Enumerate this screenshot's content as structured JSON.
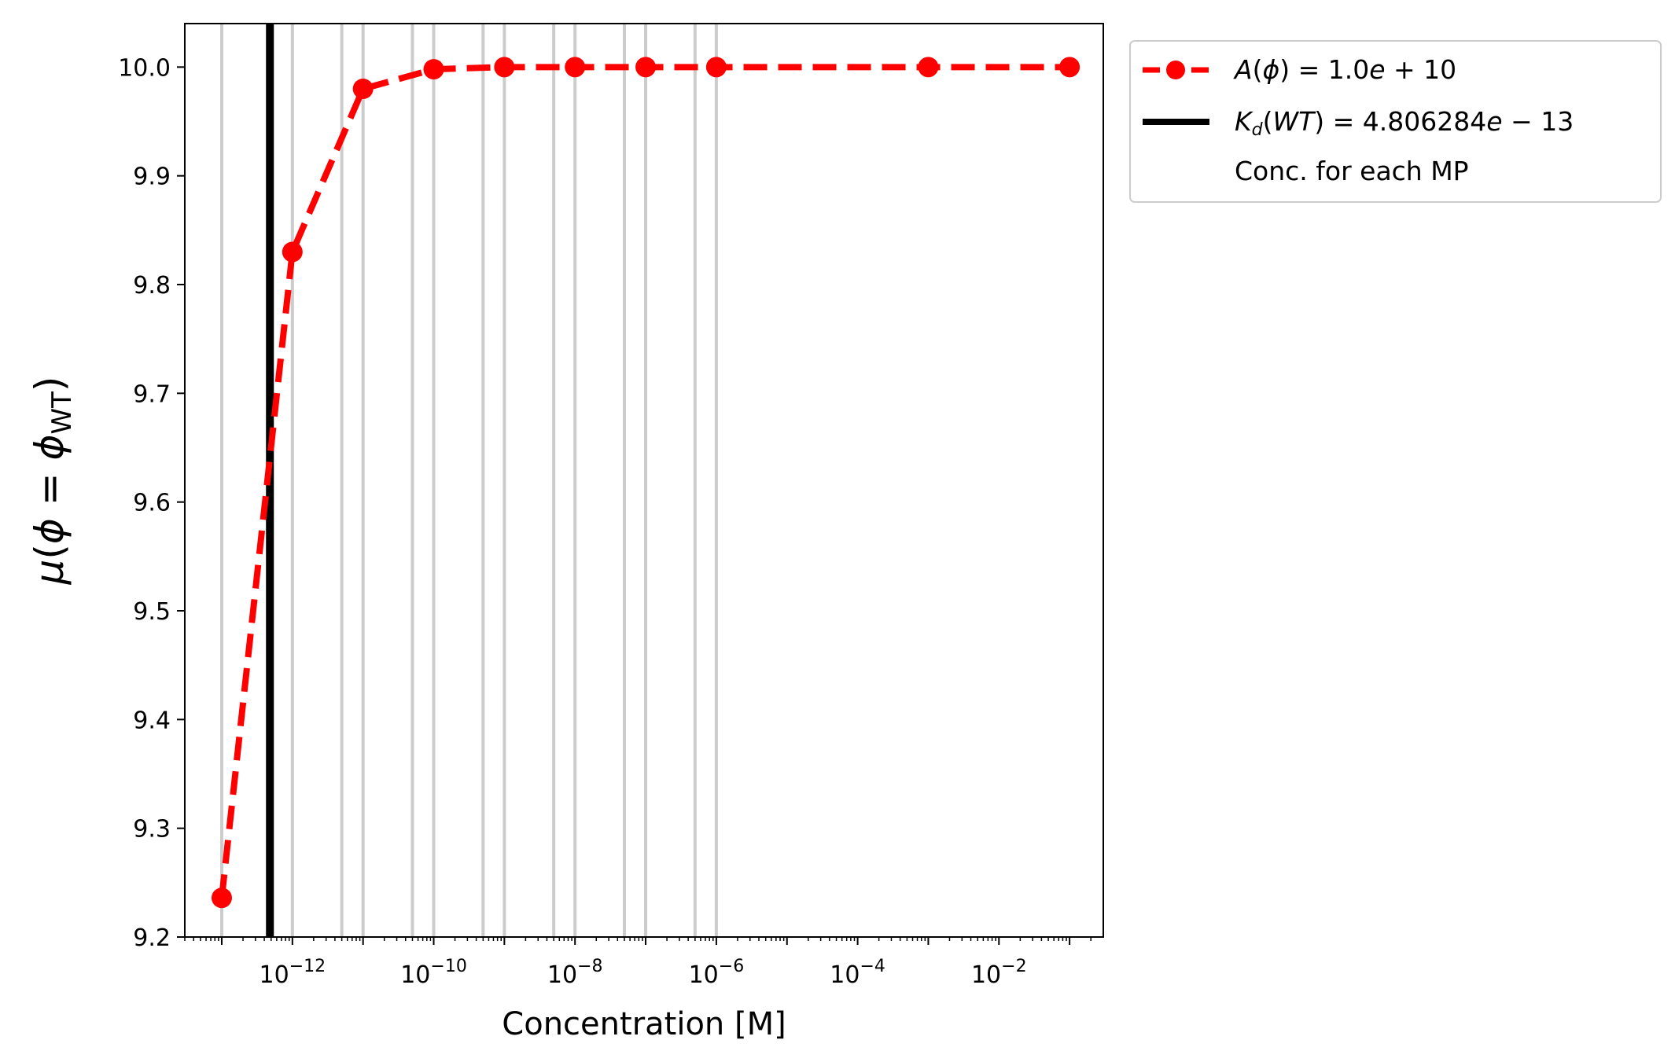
{
  "chart_data": {
    "type": "line",
    "title": "",
    "xlabel": "Concentration [M]",
    "ylabel": "μ(ϕ = ϕ_WT)",
    "x_scale": "log",
    "xlim": [
      3e-14,
      0.3
    ],
    "ylim": [
      9.2,
      10.04
    ],
    "grid": false,
    "legend_position": "outside-top-right",
    "x_tick_values": [
      1e-12,
      1e-10,
      1e-08,
      1e-06,
      0.0001,
      0.01
    ],
    "x_tick_labels": [
      {
        "base": "10",
        "exp": "−12"
      },
      {
        "base": "10",
        "exp": "−10"
      },
      {
        "base": "10",
        "exp": "−8"
      },
      {
        "base": "10",
        "exp": "−6"
      },
      {
        "base": "10",
        "exp": "−4"
      },
      {
        "base": "10",
        "exp": "−2"
      }
    ],
    "y_tick_values": [
      9.2,
      9.3,
      9.4,
      9.5,
      9.6,
      9.7,
      9.8,
      9.9,
      10.0
    ],
    "y_tick_labels": [
      "9.2",
      "9.3",
      "9.4",
      "9.5",
      "9.6",
      "9.7",
      "9.8",
      "9.9",
      "10.0"
    ],
    "mp_concentrations": [
      1e-13,
      5e-13,
      1e-12,
      5e-12,
      1e-11,
      5e-11,
      1e-10,
      5e-10,
      1e-09,
      5e-09,
      1e-08,
      5e-08,
      1e-07,
      5e-07,
      1e-06
    ],
    "kd_wt": 4.806284e-13,
    "series": [
      {
        "name": "A(ϕ) = 1.0e + 10",
        "color": "#ff0000",
        "style": "dashed",
        "marker": "circle",
        "x": [
          1e-13,
          1e-12,
          1e-11,
          1e-10,
          1e-09,
          1e-08,
          1e-07,
          1e-06,
          0.001,
          0.1
        ],
        "y": [
          9.236,
          9.83,
          9.98,
          9.998,
          10.0,
          10.0,
          10.0,
          10.0,
          10.0,
          10.0
        ]
      }
    ],
    "legend": {
      "series_label": {
        "fn": "A",
        "arg": "ϕ",
        "rest": " = 1.0",
        "e1": "e",
        "rest2": " + 10"
      },
      "kd_label": {
        "k": "K",
        "sub": "d",
        "arg": "WT",
        "rest": " = 4.806284",
        "e1": "e",
        "rest2": " − 13"
      },
      "mp_label": "Conc. for each MP"
    },
    "colors": {
      "series": "#ff0000",
      "kd_line": "#000000",
      "mp_lines": "#cccccc",
      "axes": "#000000"
    }
  }
}
